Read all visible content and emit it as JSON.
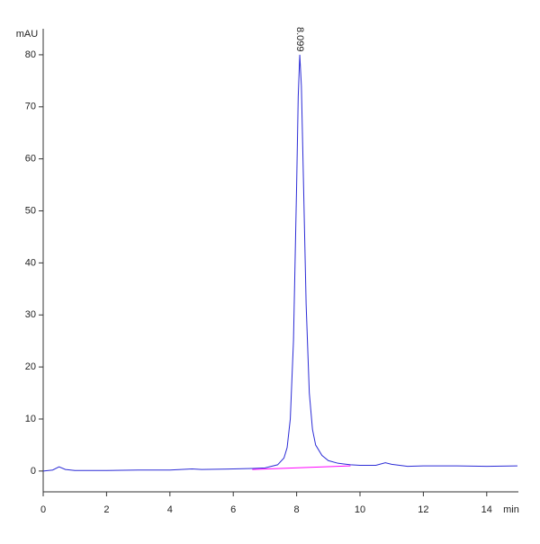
{
  "chart_data": {
    "type": "line",
    "y_label": "mAU",
    "x_label": "min",
    "xlim": [
      0,
      15
    ],
    "ylim": [
      -4,
      85
    ],
    "xticks": [
      0,
      2,
      4,
      6,
      8,
      10,
      12,
      14
    ],
    "yticks": [
      0,
      10,
      20,
      30,
      40,
      50,
      60,
      70,
      80
    ],
    "series": [
      {
        "color": "#2b2bd6",
        "x": [
          0,
          0.3,
          0.5,
          0.7,
          1,
          2,
          3,
          4,
          4.7,
          5,
          6,
          6.6,
          7,
          7.4,
          7.6,
          7.7,
          7.8,
          7.9,
          8.0,
          8.05,
          8.099,
          8.15,
          8.2,
          8.3,
          8.4,
          8.5,
          8.6,
          8.8,
          9,
          9.3,
          9.7,
          10,
          10.5,
          10.8,
          11,
          11.5,
          12,
          13,
          14,
          14.97
        ],
        "values": [
          0,
          0.2,
          0.8,
          0.3,
          0.1,
          0.1,
          0.2,
          0.2,
          0.4,
          0.3,
          0.4,
          0.5,
          0.6,
          1.2,
          2.5,
          4.5,
          10,
          25,
          55,
          72,
          80,
          74,
          60,
          32,
          15,
          8,
          5,
          3,
          2,
          1.5,
          1.2,
          1.1,
          1.1,
          1.6,
          1.3,
          0.9,
          1.0,
          1.0,
          0.9,
          1.0
        ]
      },
      {
        "color": "#ff00ff",
        "x": [
          6.6,
          9.7
        ],
        "values": [
          0.3,
          1.0
        ]
      }
    ],
    "annotations": [
      {
        "x": 8.099,
        "y": 80,
        "label": "8.099"
      }
    ]
  }
}
